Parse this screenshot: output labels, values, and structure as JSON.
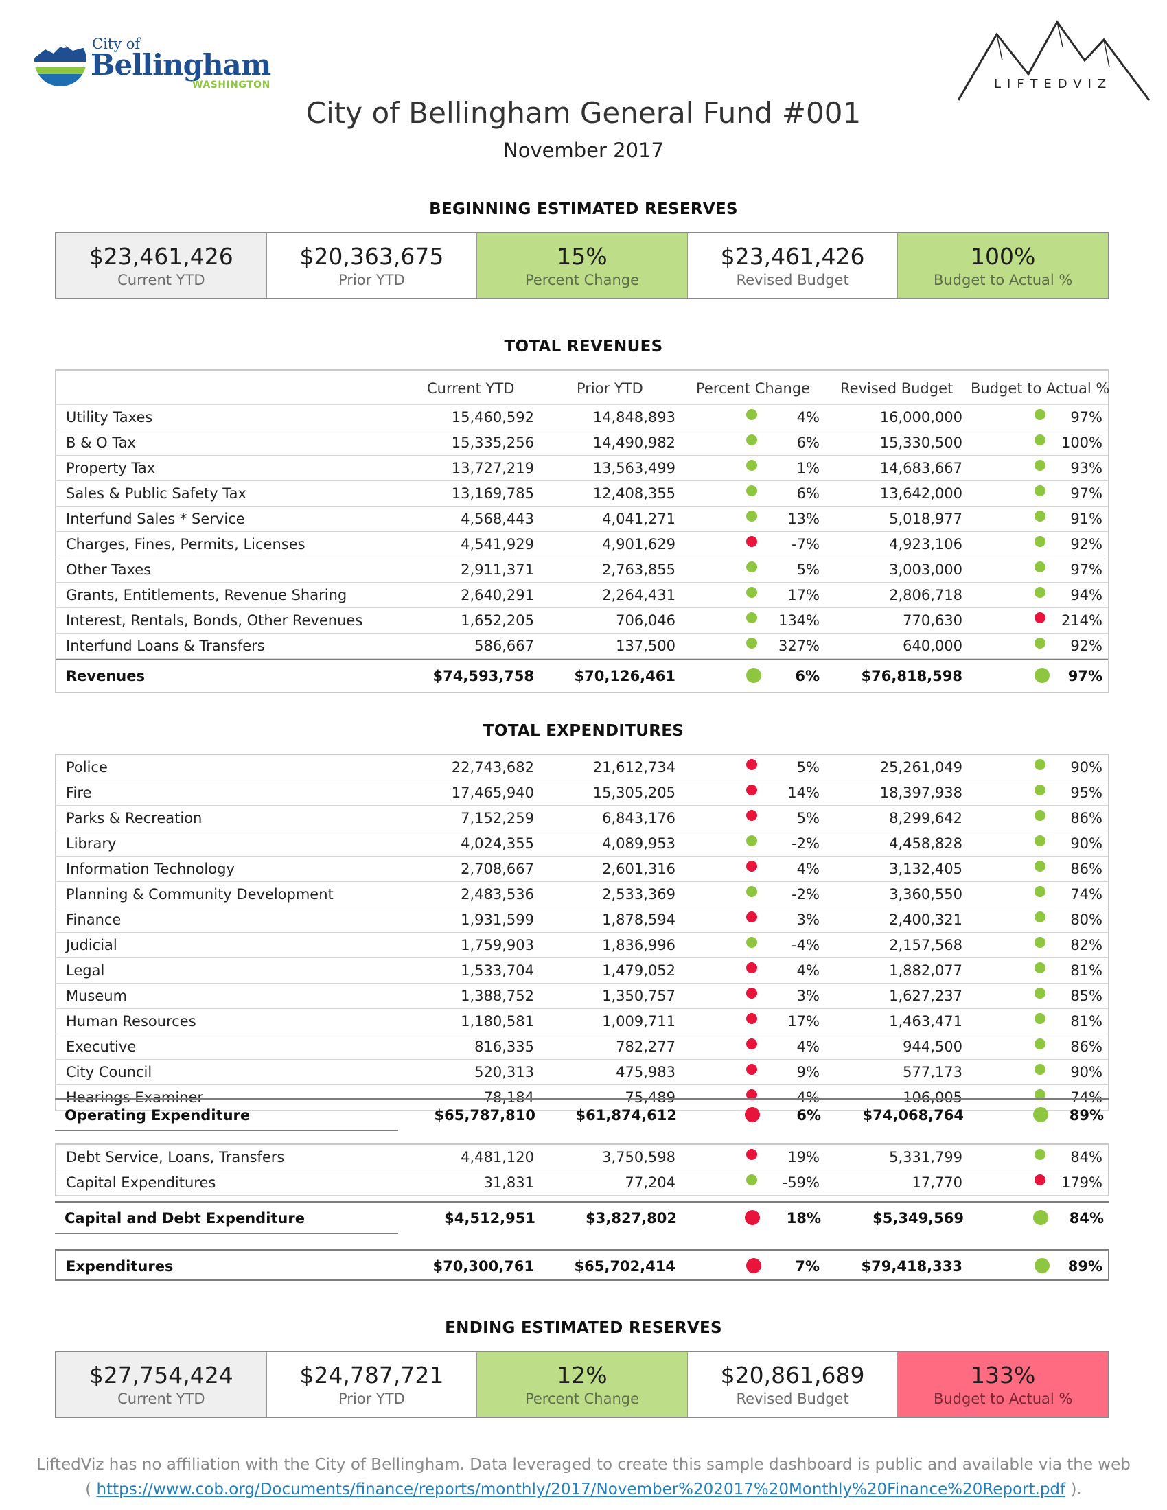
{
  "branding": {
    "city_logo_small": "City of",
    "city_logo_name": "Bellingham",
    "city_logo_state": "WASHINGTON",
    "liftedviz_word": "LIFTEDVIZ"
  },
  "header": {
    "title": "City of Bellingham General Fund #001",
    "subtitle": "November 2017"
  },
  "beginning_reserves": {
    "heading": "BEGINNING ESTIMATED RESERVES",
    "kpis": [
      {
        "value": "$23,461,426",
        "label": "Current YTD"
      },
      {
        "value": "$20,363,675",
        "label": "Prior YTD"
      },
      {
        "value": "15%",
        "label": "Percent Change"
      },
      {
        "value": "$23,461,426",
        "label": "Revised Budget"
      },
      {
        "value": "100%",
        "label": "Budget to Actual %"
      }
    ]
  },
  "revenues": {
    "heading": "TOTAL REVENUES",
    "columns": [
      "Current YTD",
      "Prior YTD",
      "Percent Change",
      "Revised Budget",
      "Budget to Actual %"
    ],
    "rows": [
      {
        "name": "Utility Taxes",
        "current": "15,460,592",
        "prior": "14,848,893",
        "chg_status": "green",
        "chg": "4%",
        "budget": "16,000,000",
        "bta_status": "green",
        "bta": "97%"
      },
      {
        "name": "B & O Tax",
        "current": "15,335,256",
        "prior": "14,490,982",
        "chg_status": "green",
        "chg": "6%",
        "budget": "15,330,500",
        "bta_status": "green",
        "bta": "100%"
      },
      {
        "name": "Property Tax",
        "current": "13,727,219",
        "prior": "13,563,499",
        "chg_status": "green",
        "chg": "1%",
        "budget": "14,683,667",
        "bta_status": "green",
        "bta": "93%"
      },
      {
        "name": "Sales & Public Safety Tax",
        "current": "13,169,785",
        "prior": "12,408,355",
        "chg_status": "green",
        "chg": "6%",
        "budget": "13,642,000",
        "bta_status": "green",
        "bta": "97%"
      },
      {
        "name": "Interfund Sales * Service",
        "current": "4,568,443",
        "prior": "4,041,271",
        "chg_status": "green",
        "chg": "13%",
        "budget": "5,018,977",
        "bta_status": "green",
        "bta": "91%"
      },
      {
        "name": "Charges, Fines, Permits, Licenses",
        "current": "4,541,929",
        "prior": "4,901,629",
        "chg_status": "red",
        "chg": "-7%",
        "budget": "4,923,106",
        "bta_status": "green",
        "bta": "92%"
      },
      {
        "name": "Other Taxes",
        "current": "2,911,371",
        "prior": "2,763,855",
        "chg_status": "green",
        "chg": "5%",
        "budget": "3,003,000",
        "bta_status": "green",
        "bta": "97%"
      },
      {
        "name": "Grants, Entitlements, Revenue Sharing",
        "current": "2,640,291",
        "prior": "2,264,431",
        "chg_status": "green",
        "chg": "17%",
        "budget": "2,806,718",
        "bta_status": "green",
        "bta": "94%"
      },
      {
        "name": "Interest, Rentals, Bonds, Other Revenues",
        "current": "1,652,205",
        "prior": "706,046",
        "chg_status": "green",
        "chg": "134%",
        "budget": "770,630",
        "bta_status": "red",
        "bta": "214%"
      },
      {
        "name": "Interfund Loans & Transfers",
        "current": "586,667",
        "prior": "137,500",
        "chg_status": "green",
        "chg": "327%",
        "budget": "640,000",
        "bta_status": "green",
        "bta": "92%"
      }
    ],
    "total": {
      "name": "Revenues",
      "current": "$74,593,758",
      "prior": "$70,126,461",
      "chg_status": "green",
      "chg": "6%",
      "budget": "$76,818,598",
      "bta_status": "green",
      "bta": "97%"
    }
  },
  "expenditures": {
    "heading": "TOTAL EXPENDITURES",
    "operating_rows": [
      {
        "name": "Police",
        "current": "22,743,682",
        "prior": "21,612,734",
        "chg_status": "red",
        "chg": "5%",
        "budget": "25,261,049",
        "bta_status": "green",
        "bta": "90%"
      },
      {
        "name": "Fire",
        "current": "17,465,940",
        "prior": "15,305,205",
        "chg_status": "red",
        "chg": "14%",
        "budget": "18,397,938",
        "bta_status": "green",
        "bta": "95%"
      },
      {
        "name": "Parks & Recreation",
        "current": "7,152,259",
        "prior": "6,843,176",
        "chg_status": "red",
        "chg": "5%",
        "budget": "8,299,642",
        "bta_status": "green",
        "bta": "86%"
      },
      {
        "name": "Library",
        "current": "4,024,355",
        "prior": "4,089,953",
        "chg_status": "green",
        "chg": "-2%",
        "budget": "4,458,828",
        "bta_status": "green",
        "bta": "90%"
      },
      {
        "name": "Information Technology",
        "current": "2,708,667",
        "prior": "2,601,316",
        "chg_status": "red",
        "chg": "4%",
        "budget": "3,132,405",
        "bta_status": "green",
        "bta": "86%"
      },
      {
        "name": "Planning & Community Development",
        "current": "2,483,536",
        "prior": "2,533,369",
        "chg_status": "green",
        "chg": "-2%",
        "budget": "3,360,550",
        "bta_status": "green",
        "bta": "74%"
      },
      {
        "name": "Finance",
        "current": "1,931,599",
        "prior": "1,878,594",
        "chg_status": "red",
        "chg": "3%",
        "budget": "2,400,321",
        "bta_status": "green",
        "bta": "80%"
      },
      {
        "name": "Judicial",
        "current": "1,759,903",
        "prior": "1,836,996",
        "chg_status": "green",
        "chg": "-4%",
        "budget": "2,157,568",
        "bta_status": "green",
        "bta": "82%"
      },
      {
        "name": "Legal",
        "current": "1,533,704",
        "prior": "1,479,052",
        "chg_status": "red",
        "chg": "4%",
        "budget": "1,882,077",
        "bta_status": "green",
        "bta": "81%"
      },
      {
        "name": "Museum",
        "current": "1,388,752",
        "prior": "1,350,757",
        "chg_status": "red",
        "chg": "3%",
        "budget": "1,627,237",
        "bta_status": "green",
        "bta": "85%"
      },
      {
        "name": "Human Resources",
        "current": "1,180,581",
        "prior": "1,009,711",
        "chg_status": "red",
        "chg": "17%",
        "budget": "1,463,471",
        "bta_status": "green",
        "bta": "81%"
      },
      {
        "name": "Executive",
        "current": "816,335",
        "prior": "782,277",
        "chg_status": "red",
        "chg": "4%",
        "budget": "944,500",
        "bta_status": "green",
        "bta": "86%"
      },
      {
        "name": "City Council",
        "current": "520,313",
        "prior": "475,983",
        "chg_status": "red",
        "chg": "9%",
        "budget": "577,173",
        "bta_status": "green",
        "bta": "90%"
      },
      {
        "name": "Hearings Examiner",
        "current": "78,184",
        "prior": "75,489",
        "chg_status": "red",
        "chg": "4%",
        "budget": "106,005",
        "bta_status": "green",
        "bta": "74%"
      }
    ],
    "operating_total": {
      "name": "Operating Expenditure",
      "current": "$65,787,810",
      "prior": "$61,874,612",
      "chg_status": "red",
      "chg": "6%",
      "budget": "$74,068,764",
      "bta_status": "green",
      "bta": "89%"
    },
    "capital_rows": [
      {
        "name": "Debt Service, Loans, Transfers",
        "current": "4,481,120",
        "prior": "3,750,598",
        "chg_status": "red",
        "chg": "19%",
        "budget": "5,331,799",
        "bta_status": "green",
        "bta": "84%"
      },
      {
        "name": "Capital Expenditures",
        "current": "31,831",
        "prior": "77,204",
        "chg_status": "green",
        "chg": "-59%",
        "budget": "17,770",
        "bta_status": "red",
        "bta": "179%"
      }
    ],
    "capital_total": {
      "name": "Capital and Debt Expenditure",
      "current": "$4,512,951",
      "prior": "$3,827,802",
      "chg_status": "red",
      "chg": "18%",
      "budget": "$5,349,569",
      "bta_status": "green",
      "bta": "84%"
    },
    "grand_total": {
      "name": "Expenditures",
      "current": "$70,300,761",
      "prior": "$65,702,414",
      "chg_status": "red",
      "chg": "7%",
      "budget": "$79,418,333",
      "bta_status": "green",
      "bta": "89%"
    }
  },
  "ending_reserves": {
    "heading": "ENDING ESTIMATED RESERVES",
    "kpis": [
      {
        "value": "$27,754,424",
        "label": "Current YTD"
      },
      {
        "value": "$24,787,721",
        "label": "Prior YTD"
      },
      {
        "value": "12%",
        "label": "Percent Change"
      },
      {
        "value": "$20,861,689",
        "label": "Revised Budget"
      },
      {
        "value": "133%",
        "label": "Budget to Actual %"
      }
    ]
  },
  "footer": {
    "line1": "LiftedViz has no affiliation with the City of Bellingham. Data leveraged to create this sample dashboard is public and available via the web",
    "open": "(",
    "link": "https://www.cob.org/Documents/finance/reports/monthly/2017/November%202017%20Monthly%20Finance%20Report.pdf",
    "close": ")."
  },
  "colors": {
    "green_status": "#8ec63f",
    "red_status": "#e8143c",
    "kpi_green": "#bedd88",
    "kpi_red": "#ff6b80",
    "kpi_grey": "#efefef"
  }
}
